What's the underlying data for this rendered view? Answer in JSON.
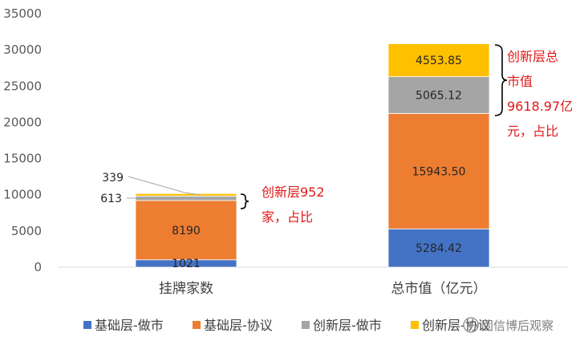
{
  "chart_data": {
    "type": "bar",
    "stacked": true,
    "categories": [
      "挂牌家数",
      "总市值（亿元）"
    ],
    "series": [
      {
        "name": "基础层-做市",
        "color": "#4472c4",
        "values": [
          1021,
          5284.42
        ],
        "labels": [
          "1021",
          "5284.42"
        ]
      },
      {
        "name": "基础层-协议",
        "color": "#ed7d31",
        "values": [
          8190,
          15943.5
        ],
        "labels": [
          "8190",
          "15943.50"
        ]
      },
      {
        "name": "创新层-做市",
        "color": "#a5a5a5",
        "values": [
          613,
          5065.12
        ],
        "labels": [
          "613",
          "5065.12"
        ]
      },
      {
        "name": "创新层-协议",
        "color": "#ffc000",
        "values": [
          339,
          4553.85
        ],
        "labels": [
          "339",
          "4553.85"
        ]
      }
    ],
    "ylim": [
      0,
      35000
    ],
    "yticks": [
      "0",
      "5000",
      "10000",
      "15000",
      "20000",
      "25000",
      "30000",
      "35000"
    ],
    "grid": false,
    "legend": "bottom",
    "annotations": [
      {
        "lines": [
          "创新层952",
          "家，占比"
        ],
        "color": "#e01818"
      },
      {
        "lines": [
          "创新层总",
          "市值",
          "9618.97亿",
          "元，占比"
        ],
        "color": "#e01818"
      }
    ]
  },
  "watermark": "固信博后观察"
}
